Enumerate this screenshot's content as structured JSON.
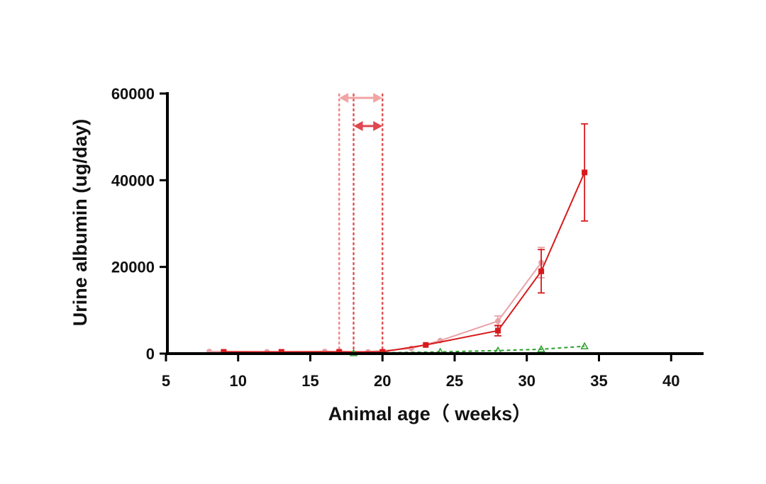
{
  "chart_data": {
    "type": "line",
    "title": "",
    "xlabel": "Animal age（ weeks）",
    "ylabel": "Urine albumin (ug/day)",
    "xlim": [
      5,
      42
    ],
    "ylim": [
      0,
      60000
    ],
    "xticks": [
      "5",
      "10",
      "15",
      "20",
      "25",
      "30",
      "35",
      "40"
    ],
    "yticks": [
      "0",
      "20000",
      "40000",
      "60000"
    ],
    "grid": false,
    "legend": "none",
    "series": [
      {
        "color": "#e8a3a8",
        "style": "solid",
        "marker": "circle",
        "x": [
          8,
          12,
          16,
          19,
          22,
          24,
          28,
          31
        ],
        "y": [
          500,
          400,
          500,
          400,
          1200,
          3000,
          7500,
          21000
        ],
        "err": [
          0,
          0,
          0,
          0,
          0,
          0,
          1200,
          3500
        ]
      },
      {
        "color": "#d7191c",
        "style": "solid",
        "marker": "square",
        "x": [
          9,
          13,
          17,
          20,
          23,
          28,
          31,
          34
        ],
        "y": [
          400,
          400,
          400,
          400,
          2000,
          5300,
          19000,
          41800
        ],
        "err": [
          0,
          0,
          0,
          0,
          0,
          1200,
          5000,
          11200
        ]
      },
      {
        "color": "#2e9e2e",
        "style": "dashed",
        "marker": "triangle-open",
        "x": [
          18,
          24,
          28,
          31,
          34
        ],
        "y": [
          100,
          400,
          700,
          1000,
          1700
        ],
        "err": [
          0,
          0,
          0,
          0,
          0
        ]
      }
    ],
    "annotations": {
      "vlines": [
        {
          "x": 17,
          "color": "#f08a8a"
        },
        {
          "x": 18,
          "color": "#e05555"
        },
        {
          "x": 20,
          "color": "#e05555"
        }
      ],
      "arrows": [
        {
          "x1": 17,
          "x2": 20,
          "y": 59000,
          "color": "#f2a4a4"
        },
        {
          "x1": 18,
          "x2": 20,
          "y": 52500,
          "color": "#e0474f"
        }
      ]
    }
  }
}
